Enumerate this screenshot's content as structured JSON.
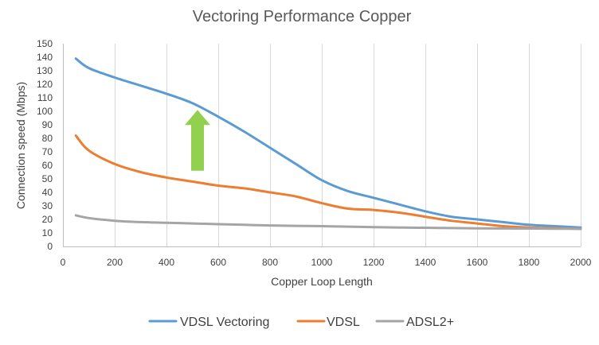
{
  "chart_data": {
    "type": "line",
    "title": "Vectoring Performance Copper",
    "xlabel": "Copper Loop Length",
    "ylabel": "Connection speed (Mbps)",
    "xlim": [
      0,
      2000
    ],
    "ylim": [
      0,
      150
    ],
    "x_ticks": [
      0,
      200,
      400,
      600,
      800,
      1000,
      1200,
      1400,
      1600,
      1800,
      2000
    ],
    "y_ticks": [
      0,
      10,
      20,
      30,
      40,
      50,
      60,
      70,
      80,
      90,
      100,
      110,
      120,
      130,
      140,
      150
    ],
    "grid": "vertical",
    "legend_position": "bottom",
    "series": [
      {
        "name": "VDSL Vectoring",
        "color": "#5b9bd5",
        "x": [
          50,
          100,
          200,
          300,
          400,
          500,
          600,
          700,
          800,
          900,
          1000,
          1100,
          1200,
          1300,
          1400,
          1500,
          1600,
          1700,
          1800,
          1900,
          2000
        ],
        "values": [
          139,
          132,
          125,
          119,
          113,
          106,
          96,
          85,
          73,
          61,
          49,
          41,
          36,
          31,
          26,
          22,
          20,
          18,
          16,
          15,
          14
        ]
      },
      {
        "name": "VDSL",
        "color": "#ed7d31",
        "x": [
          50,
          100,
          200,
          300,
          400,
          500,
          600,
          700,
          800,
          900,
          1000,
          1100,
          1200,
          1300,
          1400,
          1500,
          1600,
          1700,
          1800,
          1900,
          2000
        ],
        "values": [
          82,
          71,
          61,
          55,
          51,
          48,
          45,
          43,
          40,
          37,
          32,
          28,
          27,
          25,
          22,
          19,
          17,
          15,
          14,
          13.5,
          13
        ]
      },
      {
        "name": "ADSL2+",
        "color": "#a5a5a5",
        "x": [
          50,
          100,
          200,
          300,
          400,
          500,
          600,
          700,
          800,
          900,
          1000,
          1100,
          1200,
          1300,
          1400,
          1500,
          1600,
          1700,
          1800,
          1900,
          2000
        ],
        "values": [
          23,
          21,
          19,
          18,
          17.5,
          17,
          16.5,
          16,
          15.5,
          15.2,
          15,
          14.6,
          14.3,
          14,
          13.8,
          13.6,
          13.4,
          13.3,
          13.2,
          13.1,
          13
        ]
      }
    ],
    "annotation": {
      "type": "arrow",
      "direction": "up",
      "color": "#92d050",
      "x": 520,
      "y_from": 56,
      "y_to": 101
    }
  }
}
